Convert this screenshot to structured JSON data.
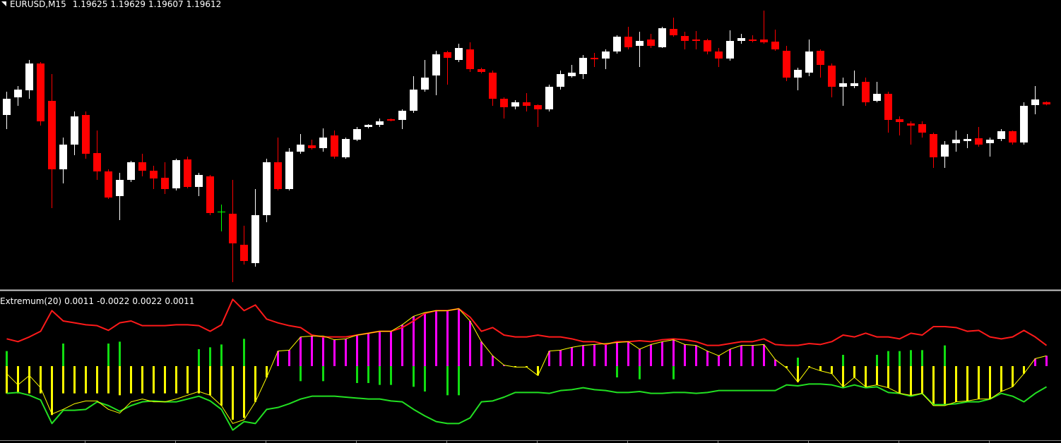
{
  "chart_data": [
    {
      "type": "candlestick",
      "title": "EURUSD,M15",
      "up_color": "#ffffff",
      "down_color": "#ff0000",
      "doji_color": "#00ff00",
      "ylim": [
        1.18564,
        1.20204
      ],
      "open": [
        1.19552,
        1.19652,
        1.19692,
        1.19844,
        1.19632,
        1.19244,
        1.19384,
        1.19552,
        1.19336,
        1.19232,
        1.19092,
        1.19184,
        1.19284,
        1.19236,
        1.19196,
        1.19136,
        1.193,
        1.19144,
        1.19204,
        1.19004,
        1.18992,
        1.18816,
        1.18712,
        1.18984,
        1.19284,
        1.19132,
        1.19344,
        1.1938,
        1.19364,
        1.19436,
        1.19312,
        1.19412,
        1.19484,
        1.19496,
        1.19528,
        1.19524,
        1.19576,
        1.19696,
        1.19776,
        1.19908,
        1.19864,
        1.19924,
        1.19812,
        1.19792,
        1.19644,
        1.196,
        1.19624,
        1.19608,
        1.19584,
        1.19712,
        1.19772,
        1.19784,
        1.19876,
        1.19872,
        1.19912,
        1.19996,
        1.19944,
        1.1998,
        1.19936,
        1.2004,
        1.2,
        1.1998,
        1.19976,
        1.19912,
        1.19872,
        1.19972,
        1.1998,
        1.1998,
        1.19968,
        1.19916,
        1.19764,
        1.19792,
        1.19916,
        1.19832,
        1.19712,
        1.19716,
        1.1974,
        1.19632,
        1.19672,
        1.19528,
        1.19504,
        1.195,
        1.19444,
        1.19316,
        1.19392,
        1.19404,
        1.1942,
        1.19392,
        1.19416,
        1.1946,
        1.19396,
        1.19608,
        1.19625
      ],
      "high": [
        1.19684,
        1.19716,
        1.19864,
        1.19852,
        1.19784,
        1.19424,
        1.19572,
        1.19572,
        1.19464,
        1.19244,
        1.19224,
        1.19292,
        1.19332,
        1.19264,
        1.19284,
        1.19304,
        1.19316,
        1.19224,
        1.19212,
        1.19044,
        1.19184,
        1.18924,
        1.19132,
        1.19304,
        1.19424,
        1.19364,
        1.19444,
        1.19412,
        1.19476,
        1.19464,
        1.19424,
        1.19484,
        1.195,
        1.19532,
        1.19532,
        1.19584,
        1.19772,
        1.19864,
        1.19916,
        1.19916,
        1.19956,
        1.19964,
        1.1982,
        1.19804,
        1.19652,
        1.19636,
        1.19676,
        1.19612,
        1.19724,
        1.19804,
        1.19836,
        1.19892,
        1.19904,
        1.19924,
        1.20004,
        1.20052,
        1.20024,
        1.20012,
        1.20052,
        1.20104,
        1.20024,
        1.20028,
        1.19984,
        1.19932,
        1.20032,
        1.20012,
        1.20004,
        1.20144,
        1.20036,
        1.19944,
        1.1982,
        1.1998,
        1.19924,
        1.19844,
        1.19764,
        1.19804,
        1.19764,
        1.1974,
        1.19684,
        1.19544,
        1.19516,
        1.19516,
        1.19452,
        1.19404,
        1.19464,
        1.19444,
        1.19484,
        1.19424,
        1.19472,
        1.19464,
        1.19624,
        1.19716,
        1.19629
      ],
      "low": [
        1.19472,
        1.19604,
        1.19644,
        1.19492,
        1.19024,
        1.19164,
        1.19324,
        1.19304,
        1.19184,
        1.19076,
        1.18956,
        1.19172,
        1.19204,
        1.19132,
        1.19104,
        1.19124,
        1.19136,
        1.19092,
        1.18984,
        1.18892,
        1.18604,
        1.18704,
        1.18692,
        1.18944,
        1.19124,
        1.19124,
        1.19332,
        1.19356,
        1.19344,
        1.19304,
        1.19304,
        1.19404,
        1.19476,
        1.19484,
        1.19516,
        1.19472,
        1.19564,
        1.19684,
        1.19664,
        1.19724,
        1.19852,
        1.19796,
        1.19788,
        1.19604,
        1.19532,
        1.19584,
        1.19572,
        1.19484,
        1.19572,
        1.19696,
        1.19764,
        1.19756,
        1.19824,
        1.19812,
        1.199,
        1.19924,
        1.19824,
        1.19932,
        1.19932,
        1.19996,
        1.19924,
        1.19924,
        1.19896,
        1.19824,
        1.1986,
        1.19956,
        1.19964,
        1.19956,
        1.19916,
        1.19744,
        1.19692,
        1.19772,
        1.19764,
        1.19652,
        1.19604,
        1.19704,
        1.19604,
        1.19624,
        1.19452,
        1.19436,
        1.19384,
        1.19424,
        1.19252,
        1.19252,
        1.19344,
        1.19364,
        1.19372,
        1.19316,
        1.19404,
        1.19384,
        1.19384,
        1.19556,
        1.19607
      ],
      "close": [
        1.19644,
        1.19696,
        1.19844,
        1.19516,
        1.19244,
        1.19384,
        1.19544,
        1.19332,
        1.19232,
        1.19084,
        1.19184,
        1.19284,
        1.19236,
        1.19192,
        1.19132,
        1.19296,
        1.19144,
        1.19212,
        1.18996,
        1.19004,
        1.18824,
        1.18724,
        1.18984,
        1.19284,
        1.19132,
        1.19344,
        1.19384,
        1.19364,
        1.19424,
        1.19316,
        1.19416,
        1.19472,
        1.19496,
        1.19516,
        1.1952,
        1.19576,
        1.19696,
        1.19764,
        1.19896,
        1.19876,
        1.19932,
        1.19812,
        1.19796,
        1.19644,
        1.19596,
        1.19624,
        1.19604,
        1.19584,
        1.19712,
        1.19784,
        1.19792,
        1.19876,
        1.19868,
        1.19912,
        1.19996,
        1.19936,
        1.19972,
        1.19944,
        1.20044,
        1.20004,
        1.19972,
        1.19972,
        1.19912,
        1.19872,
        1.19972,
        1.19988,
        1.19972,
        1.19964,
        1.19924,
        1.19764,
        1.19808,
        1.19912,
        1.19836,
        1.19712,
        1.19732,
        1.19732,
        1.19624,
        1.19672,
        1.19524,
        1.19512,
        1.19492,
        1.19452,
        1.19312,
        1.19384,
        1.19412,
        1.19416,
        1.19384,
        1.19412,
        1.1946,
        1.19396,
        1.19604,
        1.1964,
        1.19612
      ]
    },
    {
      "type": "indicator",
      "title": "Extremum(20)",
      "ylim": [
        -0.007875,
        0.007875
      ],
      "series": [
        {
          "style": "histogram",
          "color": "#ff00ff",
          "negative_color": "#ffff00",
          "values": [
            -0.0029,
            -0.0029,
            -0.0029,
            -0.0029,
            -0.0052,
            -0.0029,
            -0.0029,
            -0.0029,
            -0.0029,
            -0.0029,
            -0.0031,
            -0.0029,
            -0.0029,
            -0.0029,
            -0.0029,
            -0.0029,
            -0.0029,
            -0.0029,
            -0.0031,
            -0.0042,
            -0.0057,
            -0.0055,
            -0.0038,
            -0.0012,
            0.0016,
            0.0017,
            0.0031,
            0.0032,
            0.0032,
            0.0028,
            0.0029,
            0.0033,
            0.0035,
            0.0037,
            0.0037,
            0.0044,
            0.0053,
            0.0057,
            0.0059,
            0.0059,
            0.0061,
            0.0048,
            0.0026,
            0.0011,
            0.0001,
            -0.0001,
            -0.0001,
            -0.001,
            0.0016,
            0.0017,
            0.002,
            0.0022,
            0.0023,
            0.0024,
            0.0025,
            0.0026,
            0.0018,
            0.0023,
            0.0026,
            0.0028,
            0.0023,
            0.0022,
            0.0016,
            0.0011,
            0.0018,
            0.0022,
            0.0022,
            0.0023,
            0.0007,
            -0.0002,
            -0.0017,
            -0.0001,
            -0.0005,
            -0.0008,
            -0.0022,
            -0.0012,
            -0.0022,
            -0.002,
            -0.0023,
            -0.0029,
            -0.0031,
            -0.0029,
            -0.0042,
            -0.0042,
            -0.0038,
            -0.0037,
            -0.0035,
            -0.0035,
            -0.0027,
            -0.0022,
            -0.0008,
            0.0008,
            0.0011
          ]
        },
        {
          "style": "line",
          "color": "#22e022",
          "width": 2,
          "values": [
            -0.0029,
            -0.0028,
            -0.0031,
            -0.0036,
            -0.0061,
            -0.0047,
            -0.0047,
            -0.0046,
            -0.0038,
            -0.0042,
            -0.0048,
            -0.0042,
            -0.0038,
            -0.0037,
            -0.0038,
            -0.0038,
            -0.0035,
            -0.0032,
            -0.0037,
            -0.0046,
            -0.0068,
            -0.0059,
            -0.0061,
            -0.0046,
            -0.0044,
            -0.004,
            -0.0035,
            -0.0032,
            -0.0032,
            -0.0032,
            -0.0033,
            -0.0034,
            -0.0035,
            -0.0035,
            -0.0037,
            -0.0038,
            -0.0046,
            -0.0053,
            -0.0059,
            -0.0061,
            -0.0061,
            -0.0055,
            -0.0038,
            -0.0037,
            -0.0033,
            -0.0028,
            -0.0028,
            -0.0028,
            -0.0029,
            -0.0026,
            -0.0025,
            -0.0023,
            -0.0025,
            -0.0026,
            -0.0028,
            -0.0028,
            -0.0027,
            -0.0029,
            -0.0029,
            -0.0028,
            -0.0028,
            -0.0029,
            -0.0028,
            -0.0026,
            -0.0026,
            -0.0026,
            -0.0026,
            -0.0026,
            -0.0026,
            -0.002,
            -0.0021,
            -0.0019,
            -0.0019,
            -0.002,
            -0.0023,
            -0.002,
            -0.0023,
            -0.0022,
            -0.0028,
            -0.0029,
            -0.0032,
            -0.0029,
            -0.0041,
            -0.0041,
            -0.004,
            -0.0038,
            -0.0038,
            -0.0035,
            -0.0029,
            -0.0032,
            -0.0038,
            -0.0029,
            -0.0022
          ]
        },
        {
          "style": "line",
          "color": "#ff1a1a",
          "width": 2,
          "values": [
            0.0029,
            0.0026,
            0.0031,
            0.0037,
            0.0059,
            0.0048,
            0.0046,
            0.0044,
            0.0043,
            0.0038,
            0.0046,
            0.0048,
            0.0043,
            0.0043,
            0.0043,
            0.0044,
            0.0044,
            0.0043,
            0.0037,
            0.0044,
            0.0071,
            0.0059,
            0.0065,
            0.005,
            0.0046,
            0.0043,
            0.0041,
            0.0033,
            0.0031,
            0.0031,
            0.0031,
            0.0033,
            0.0035,
            0.0037,
            0.0037,
            0.0041,
            0.0048,
            0.0056,
            0.0059,
            0.0059,
            0.0061,
            0.0052,
            0.0037,
            0.0041,
            0.0033,
            0.0031,
            0.0031,
            0.0033,
            0.0031,
            0.0031,
            0.0029,
            0.0026,
            0.0026,
            0.0023,
            0.0026,
            0.0026,
            0.0027,
            0.0026,
            0.0028,
            0.0029,
            0.0028,
            0.0026,
            0.0022,
            0.0022,
            0.0024,
            0.0026,
            0.0026,
            0.0029,
            0.0023,
            0.0022,
            0.0022,
            0.0024,
            0.0023,
            0.0026,
            0.0033,
            0.0031,
            0.0035,
            0.0031,
            0.0031,
            0.0029,
            0.0035,
            0.0033,
            0.0042,
            0.0042,
            0.0041,
            0.0037,
            0.0038,
            0.0031,
            0.0029,
            0.0031,
            0.0038,
            0.0031,
            0.0022
          ]
        },
        {
          "style": "line",
          "color": "#ffff00",
          "width": 1,
          "values": [
            -0.0008,
            -0.002,
            -0.001,
            -0.0023,
            -0.0051,
            -0.0046,
            -0.004,
            -0.0037,
            -0.0037,
            -0.0046,
            -0.005,
            -0.0038,
            -0.0035,
            -0.0038,
            -0.0038,
            -0.0035,
            -0.0031,
            -0.0027,
            -0.0031,
            -0.0042,
            -0.0061,
            -0.0057,
            -0.0038,
            -0.0012,
            0.0016,
            0.0017,
            0.0031,
            0.0032,
            0.0032,
            0.0028,
            0.0029,
            0.0033,
            0.0035,
            0.0037,
            0.0037,
            0.0044,
            0.0053,
            0.0057,
            0.0059,
            0.0059,
            0.0061,
            0.0048,
            0.0026,
            0.0011,
            0.0001,
            -0.0001,
            -0.0001,
            -0.001,
            0.0016,
            0.0017,
            0.002,
            0.0022,
            0.0023,
            0.0024,
            0.0025,
            0.0026,
            0.0018,
            0.0023,
            0.0026,
            0.0028,
            0.0023,
            0.0022,
            0.0016,
            0.0011,
            0.0018,
            0.0022,
            0.0022,
            0.0023,
            0.0007,
            -0.0002,
            -0.0017,
            -0.0001,
            -0.0005,
            -0.0008,
            -0.0022,
            -0.0012,
            -0.0022,
            -0.002,
            -0.0023,
            -0.0029,
            -0.0031,
            -0.0029,
            -0.0042,
            -0.0042,
            -0.0038,
            -0.0037,
            -0.0035,
            -0.0035,
            -0.0027,
            -0.0022,
            -0.0008,
            0.0008,
            0.0011
          ]
        },
        {
          "style": "histogram",
          "color": "#11dd11",
          "values": [
            0.0016,
            null,
            null,
            null,
            null,
            0.0024,
            null,
            null,
            null,
            0.0024,
            0.0026,
            null,
            null,
            null,
            null,
            null,
            null,
            0.0018,
            0.002,
            0.0023,
            null,
            0.0029,
            null,
            null,
            null,
            null,
            -0.0016,
            null,
            -0.0016,
            null,
            null,
            -0.0018,
            -0.0018,
            -0.002,
            -0.002,
            null,
            -0.0022,
            -0.0027,
            null,
            -0.0031,
            -0.0031,
            null,
            null,
            null,
            null,
            null,
            null,
            null,
            null,
            null,
            null,
            null,
            null,
            null,
            -0.0012,
            null,
            -0.0014,
            null,
            null,
            -0.0014,
            null,
            null,
            null,
            null,
            null,
            null,
            null,
            null,
            null,
            null,
            0.0009,
            null,
            null,
            null,
            0.0012,
            null,
            null,
            0.0012,
            0.0016,
            0.0016,
            0.0017,
            0.0017,
            null,
            0.0022,
            null,
            null,
            null,
            null,
            null,
            null,
            null,
            null,
            null
          ]
        }
      ]
    }
  ]
}
